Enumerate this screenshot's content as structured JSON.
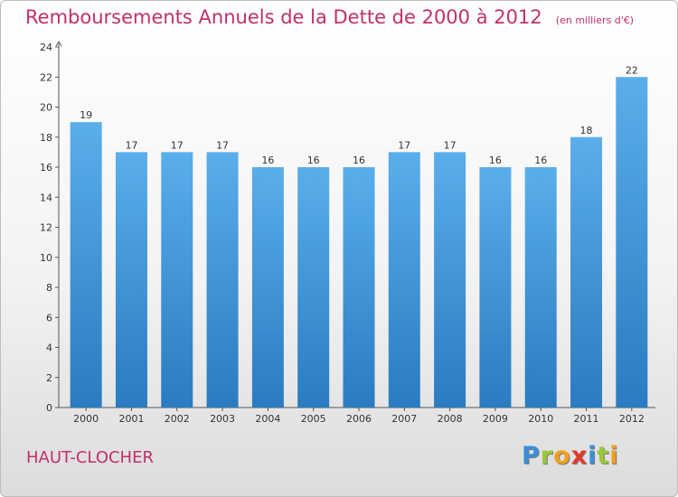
{
  "title": "Remboursements Annuels de la Dette de 2000 à 2012",
  "subtitle": "(en milliers d'€)",
  "commune": "HAUT-CLOCHER",
  "logo": {
    "letters": [
      {
        "ch": "P",
        "color": "#3b8fd8"
      },
      {
        "ch": "r",
        "color": "#9bc83a"
      },
      {
        "ch": "o",
        "color": "#f0a020"
      },
      {
        "ch": "x",
        "color": "#e23a2a"
      },
      {
        "ch": "i",
        "color": "#3b8fd8"
      },
      {
        "ch": "t",
        "color": "#9bc83a"
      },
      {
        "ch": "i",
        "color": "#f0a020"
      }
    ]
  },
  "colors": {
    "bar_top": "#5aaeea",
    "bar_bottom": "#2a7bc0",
    "text": "#333333",
    "title": "#c0306b"
  },
  "chart_data": {
    "type": "bar",
    "categories": [
      "2000",
      "2001",
      "2002",
      "2003",
      "2004",
      "2005",
      "2006",
      "2007",
      "2008",
      "2009",
      "2010",
      "2011",
      "2012"
    ],
    "values": [
      19,
      17,
      17,
      17,
      16,
      16,
      16,
      17,
      17,
      16,
      16,
      18,
      22
    ],
    "ylim": [
      0,
      24
    ],
    "yticks": [
      0,
      2,
      4,
      6,
      8,
      10,
      12,
      14,
      16,
      18,
      20,
      22,
      24
    ],
    "grid": false,
    "xlabel": "",
    "ylabel": ""
  }
}
